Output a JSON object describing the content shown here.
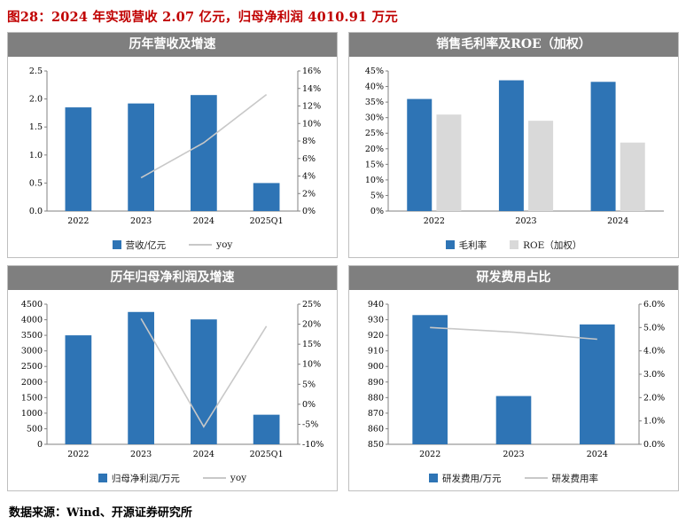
{
  "page": {
    "title": "图28：2024 年实现营收 2.07 亿元，归母净利润 4010.91 万元",
    "source": "数据来源：Wind、开源证券研究所"
  },
  "colors": {
    "accent_blue": "#2E74B5",
    "bar_gray": "#D9D9D9",
    "line_gray": "#C8C8C8",
    "header_bg": "#7F7F7F",
    "header_text": "#FFFFFF",
    "title_red": "#C00000",
    "axis_gray": "#808080",
    "panel_border": "#BFBFBF"
  },
  "chart_data": [
    {
      "type": "bar",
      "title": "历年营收及增速",
      "categories": [
        "2022",
        "2023",
        "2024",
        "2025Q1"
      ],
      "series": [
        {
          "name": "营收/亿元",
          "type": "bar",
          "axis": "left",
          "color": "#2E74B5",
          "values": [
            1.85,
            1.92,
            2.07,
            0.5
          ]
        },
        {
          "name": "yoy",
          "type": "line",
          "axis": "right",
          "color": "#C8C8C8",
          "values": [
            null,
            3.8,
            7.8,
            13.3
          ]
        }
      ],
      "left_axis": {
        "min": 0,
        "max": 2.5,
        "step": 0.5,
        "format": "1dp"
      },
      "right_axis": {
        "min": 0,
        "max": 16,
        "step": 2,
        "format": "pct0"
      }
    },
    {
      "type": "bar",
      "title": "销售毛利率及ROE（加权）",
      "categories": [
        "2022",
        "2023",
        "2024"
      ],
      "series": [
        {
          "name": "毛利率",
          "type": "bar",
          "axis": "left",
          "color": "#2E74B5",
          "values": [
            36,
            42,
            41.5
          ]
        },
        {
          "name": "ROE（加权）",
          "type": "bar",
          "axis": "left",
          "color": "#D9D9D9",
          "values": [
            31,
            29,
            22
          ]
        }
      ],
      "left_axis": {
        "min": 0,
        "max": 45,
        "step": 5,
        "format": "pct0"
      }
    },
    {
      "type": "bar",
      "title": "历年归母净利润及增速",
      "categories": [
        "2022",
        "2023",
        "2024",
        "2025Q1"
      ],
      "series": [
        {
          "name": "归母净利润/万元",
          "type": "bar",
          "axis": "left",
          "color": "#2E74B5",
          "values": [
            3500,
            4250,
            4010.91,
            950
          ]
        },
        {
          "name": "yoy",
          "type": "line",
          "axis": "right",
          "color": "#C8C8C8",
          "values": [
            null,
            21.4,
            -5.6,
            19.5
          ]
        }
      ],
      "left_axis": {
        "min": 0,
        "max": 4500,
        "step": 500,
        "format": "int"
      },
      "right_axis": {
        "min": -10,
        "max": 25,
        "step": 5,
        "format": "pct0"
      }
    },
    {
      "type": "bar",
      "title": "研发费用占比",
      "categories": [
        "2022",
        "2023",
        "2024"
      ],
      "series": [
        {
          "name": "研发费用/万元",
          "type": "bar",
          "axis": "left",
          "color": "#2E74B5",
          "values": [
            933,
            881,
            927
          ]
        },
        {
          "name": "研发费用率",
          "type": "line",
          "axis": "right",
          "color": "#C8C8C8",
          "values": [
            5.0,
            4.8,
            4.5
          ]
        }
      ],
      "left_axis": {
        "min": 850,
        "max": 940,
        "step": 10,
        "format": "int"
      },
      "right_axis": {
        "min": 0,
        "max": 6,
        "step": 1,
        "format": "pct1"
      }
    }
  ]
}
